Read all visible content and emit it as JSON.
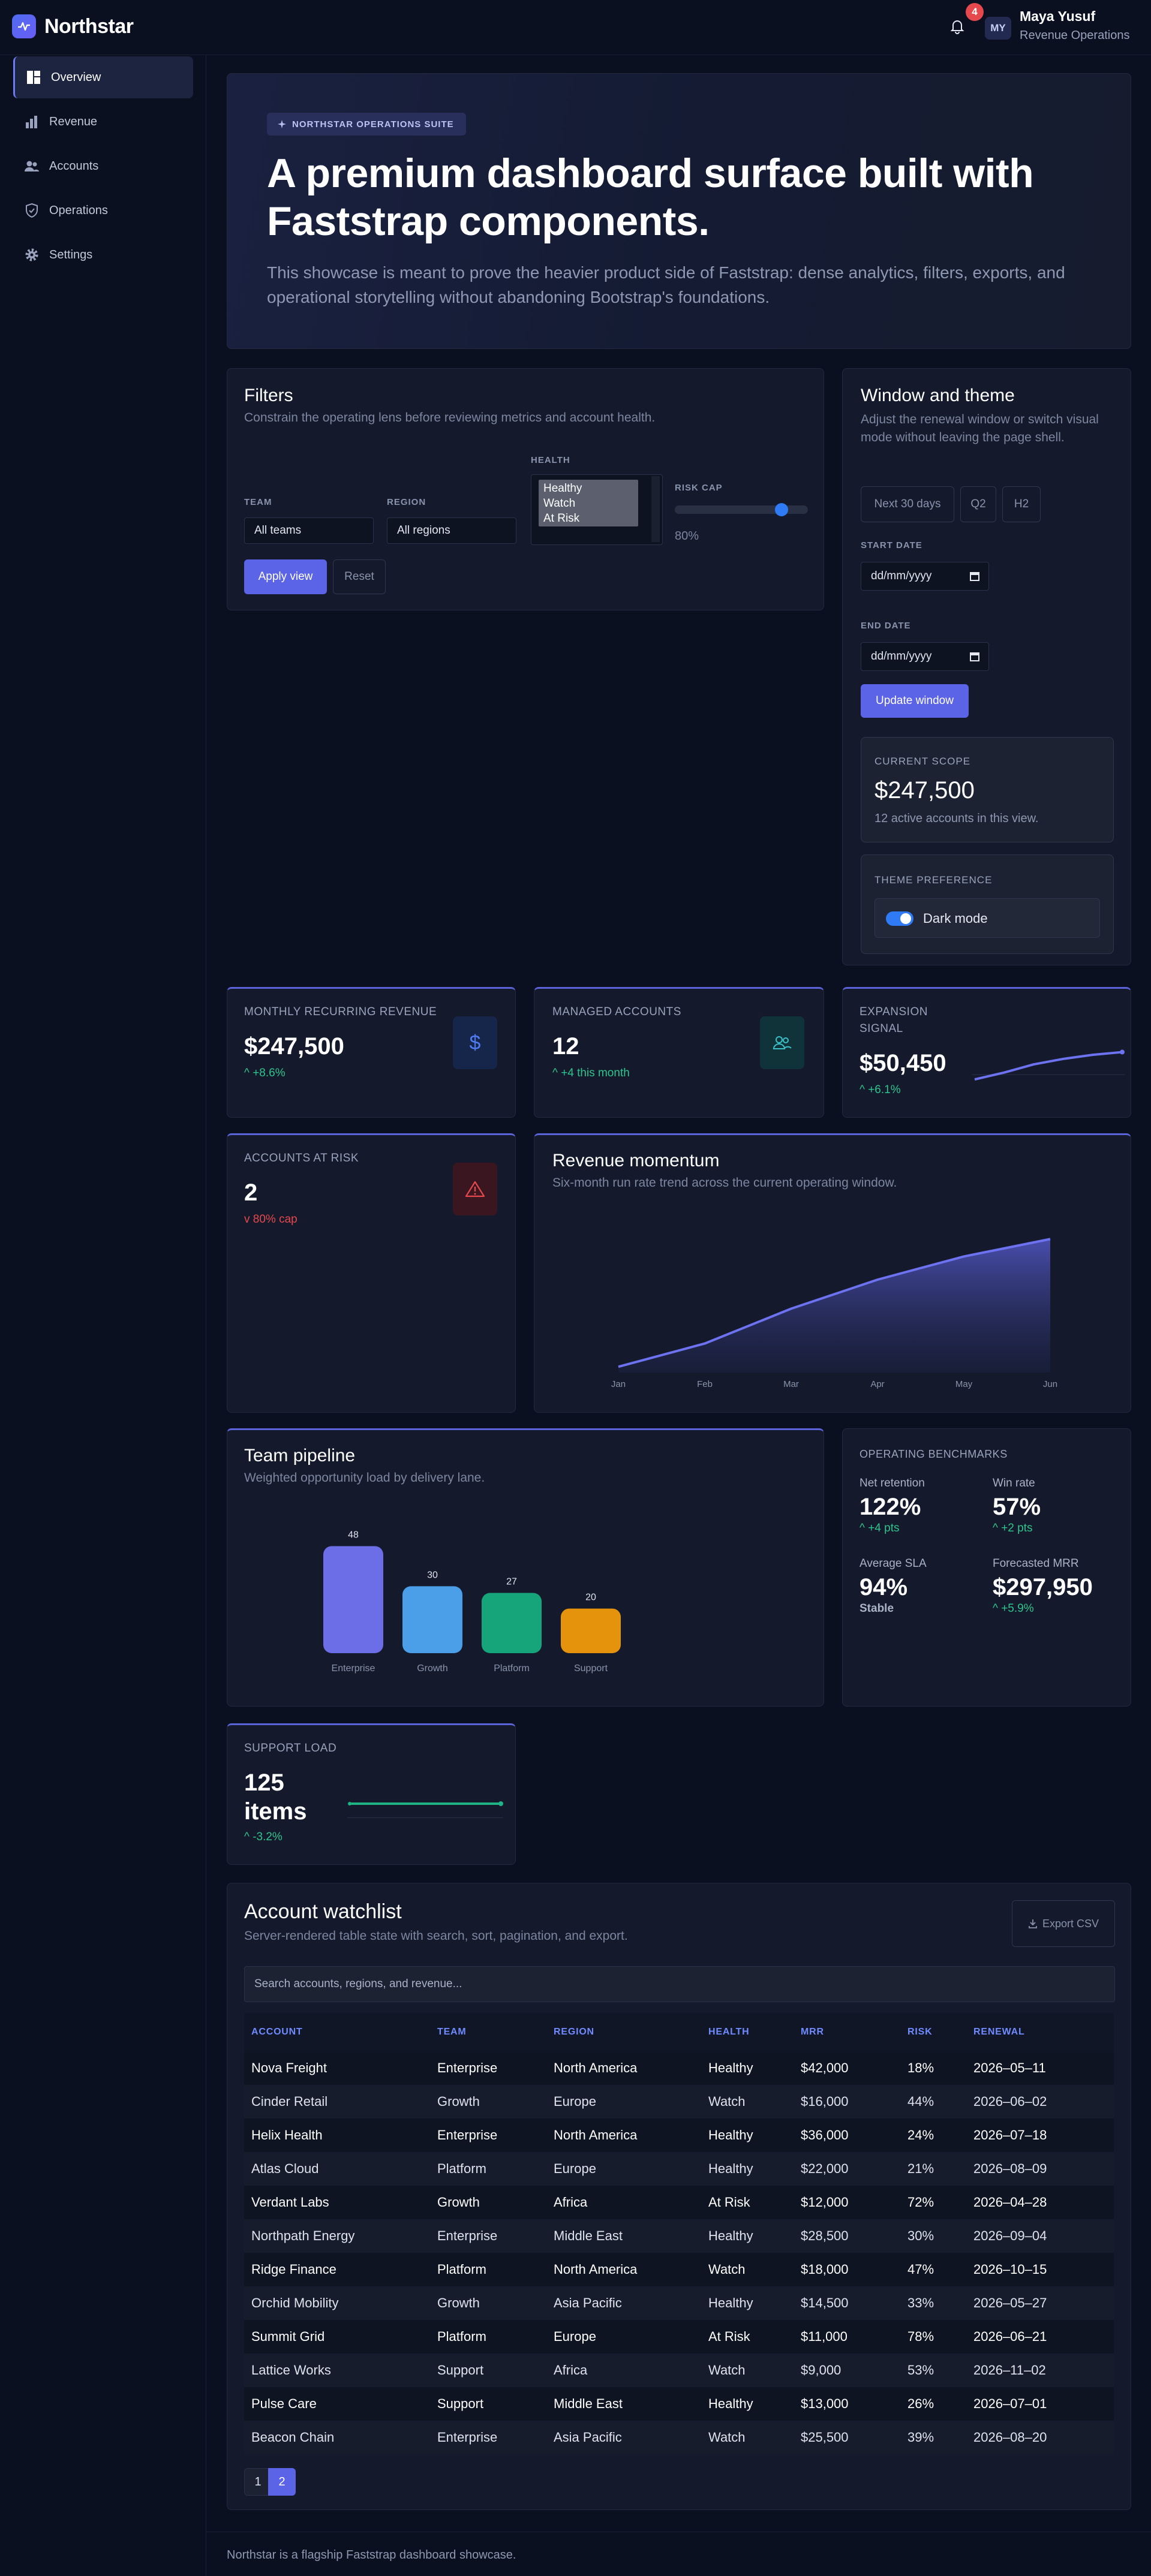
{
  "brand": {
    "name": "Northstar"
  },
  "header": {
    "notification_count": "4",
    "user_initials": "MY",
    "user_name": "Maya Yusuf",
    "user_role": "Revenue Operations"
  },
  "sidebar": {
    "items": [
      {
        "label": "Overview",
        "icon": "dashboard-icon",
        "active": true
      },
      {
        "label": "Revenue",
        "icon": "bar-chart-icon"
      },
      {
        "label": "Accounts",
        "icon": "users-icon"
      },
      {
        "label": "Operations",
        "icon": "shield-icon"
      },
      {
        "label": "Settings",
        "icon": "gear-icon"
      }
    ]
  },
  "hero": {
    "badge": "NORTHSTAR OPERATIONS SUITE",
    "title": "A premium dashboard surface built with Faststrap components.",
    "subtitle": "This showcase is meant to prove the heavier product side of Faststrap: dense analytics, filters, exports, and operational storytelling without abandoning Bootstrap's foundations."
  },
  "filters": {
    "title": "Filters",
    "subtitle": "Constrain the operating lens before reviewing metrics and account health.",
    "team_label": "TEAM",
    "team_value": "All teams",
    "region_label": "REGION",
    "region_value": "All regions",
    "health_label": "HEALTH",
    "health_options": [
      "Healthy",
      "Watch",
      "At Risk"
    ],
    "risk_label": "RISK CAP",
    "risk_value": "80%",
    "risk_level": 0.8,
    "apply_label": "Apply view",
    "reset_label": "Reset"
  },
  "window": {
    "title": "Window and theme",
    "subtitle": "Adjust the renewal window or switch visual mode without leaving the page shell.",
    "presets": [
      "Next 30 days",
      "Q2",
      "H2"
    ],
    "start_label": "START DATE",
    "start_value": "dd/mm/yyyy",
    "end_label": "END DATE",
    "end_value": "dd/mm/yyyy",
    "update_label": "Update window",
    "scope_label": "CURRENT SCOPE",
    "scope_value": "$247,500",
    "scope_note": "12 active accounts in this view.",
    "theme_label": "THEME PREFERENCE",
    "theme_value": "Dark mode",
    "theme_on": true
  },
  "metrics": {
    "mrr": {
      "label": "MONTHLY RECURRING REVENUE",
      "value": "$247,500",
      "delta": "^ +8.6%",
      "icon": "dollar-icon"
    },
    "accounts": {
      "label": "MANAGED ACCOUNTS",
      "value": "12",
      "delta": "^ +4 this month",
      "icon": "users-icon"
    },
    "expansion": {
      "label_1": "EXPANSION",
      "label_2": "SIGNAL",
      "value": "$50,450",
      "delta": "^ +6.1%",
      "spark": [
        20,
        30,
        42,
        50,
        56,
        60
      ]
    },
    "risk": {
      "label": "ACCOUNTS AT RISK",
      "value": "2",
      "delta": "v 80% cap",
      "icon": "warning-icon"
    },
    "support": {
      "label": "SUPPORT LOAD",
      "value_1": "125",
      "value_2": "items",
      "delta": "^ -3.2%",
      "spark": [
        50,
        50,
        50,
        50,
        50,
        50
      ]
    }
  },
  "momentum": {
    "title": "Revenue momentum",
    "subtitle": "Six-month run rate trend across the current operating window."
  },
  "pipeline": {
    "title": "Team pipeline",
    "subtitle": "Weighted opportunity load by delivery lane."
  },
  "benchmarks": {
    "title": "OPERATING BENCHMARKS",
    "items": [
      {
        "label": "Net retention",
        "value": "122%",
        "delta": "^ +4 pts",
        "color": "#2ec48d"
      },
      {
        "label": "Win rate",
        "value": "57%",
        "delta": "^ +2 pts",
        "color": "#2ec48d"
      },
      {
        "label": "Average SLA",
        "value": "94%",
        "delta": "Stable",
        "color": "#aab2c8"
      },
      {
        "label": "Forecasted MRR",
        "value": "$297,950",
        "delta": "^ +5.9%",
        "color": "#2ec48d"
      }
    ]
  },
  "watchlist": {
    "title": "Account watchlist",
    "subtitle": "Server-rendered table state with search, sort, pagination, and export.",
    "export_label": "Export CSV",
    "search_placeholder": "Search accounts, regions, and revenue...",
    "columns": [
      "ACCOUNT",
      "TEAM",
      "REGION",
      "HEALTH",
      "MRR",
      "RISK",
      "RENEWAL"
    ],
    "rows": [
      [
        "Nova Freight",
        "Enterprise",
        "North America",
        "Healthy",
        "$42,000",
        "18%",
        "2026–05–11"
      ],
      [
        "Cinder Retail",
        "Growth",
        "Europe",
        "Watch",
        "$16,000",
        "44%",
        "2026–06–02"
      ],
      [
        "Helix Health",
        "Enterprise",
        "North America",
        "Healthy",
        "$36,000",
        "24%",
        "2026–07–18"
      ],
      [
        "Atlas Cloud",
        "Platform",
        "Europe",
        "Healthy",
        "$22,000",
        "21%",
        "2026–08–09"
      ],
      [
        "Verdant Labs",
        "Growth",
        "Africa",
        "At Risk",
        "$12,000",
        "72%",
        "2026–04–28"
      ],
      [
        "Northpath Energy",
        "Enterprise",
        "Middle East",
        "Healthy",
        "$28,500",
        "30%",
        "2026–09–04"
      ],
      [
        "Ridge Finance",
        "Platform",
        "North America",
        "Watch",
        "$18,000",
        "47%",
        "2026–10–15"
      ],
      [
        "Orchid Mobility",
        "Growth",
        "Asia Pacific",
        "Healthy",
        "$14,500",
        "33%",
        "2026–05–27"
      ],
      [
        "Summit Grid",
        "Platform",
        "Europe",
        "At Risk",
        "$11,000",
        "78%",
        "2026–06–21"
      ],
      [
        "Lattice Works",
        "Support",
        "Africa",
        "Watch",
        "$9,000",
        "53%",
        "2026–11–02"
      ],
      [
        "Pulse Care",
        "Support",
        "Middle East",
        "Healthy",
        "$13,000",
        "26%",
        "2026–07–01"
      ],
      [
        "Beacon Chain",
        "Enterprise",
        "Asia Pacific",
        "Watch",
        "$25,500",
        "39%",
        "2026–08–20"
      ]
    ],
    "pages": [
      "1",
      "2"
    ],
    "active_page": "2"
  },
  "footer": {
    "text": "Northstar is a flagship Faststrap dashboard showcase."
  },
  "chart_data": [
    {
      "type": "area",
      "title": "Revenue momentum",
      "x": [
        "Jan",
        "Feb",
        "Mar",
        "Apr",
        "May",
        "Jun"
      ],
      "series": [
        {
          "values": [
            2,
            10,
            22,
            32,
            40,
            46
          ]
        }
      ],
      "ylim": [
        0,
        50
      ],
      "grid": false,
      "color": "#6d72f0"
    },
    {
      "type": "bar",
      "title": "Team pipeline",
      "categories": [
        "Enterprise",
        "Growth",
        "Platform",
        "Support"
      ],
      "values": [
        48,
        30,
        27,
        20
      ],
      "ylim": [
        0,
        50
      ],
      "colors": [
        "#6b6ee6",
        "#4a9fe8",
        "#16a57a",
        "#e5930d"
      ]
    }
  ]
}
